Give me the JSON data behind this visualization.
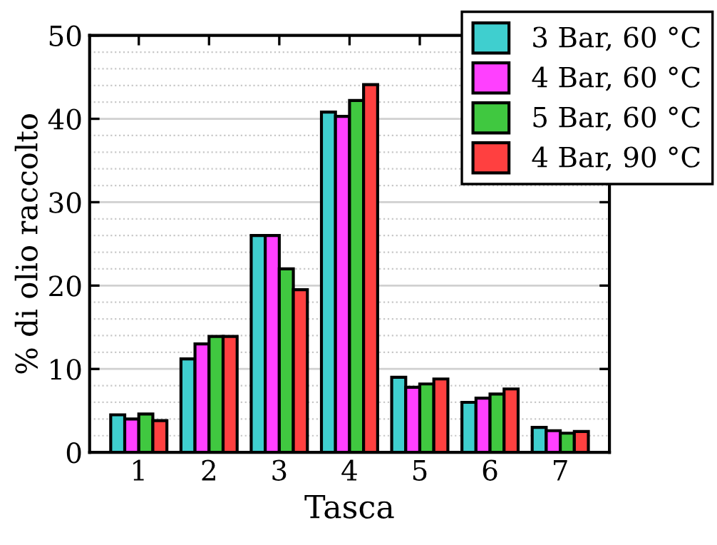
{
  "chart_data": {
    "type": "bar",
    "xlabel": "Tasca",
    "ylabel": "% di olio raccolto",
    "categories": [
      "1",
      "2",
      "3",
      "4",
      "5",
      "6",
      "7"
    ],
    "series": [
      {
        "name": "3 Bar, 60 °C",
        "color": "#3fcfcf",
        "values": [
          4.5,
          11.2,
          26.0,
          40.8,
          9.0,
          6.0,
          3.0
        ]
      },
      {
        "name": "4 Bar, 60 °C",
        "color": "#ff40ff",
        "values": [
          4.0,
          13.0,
          26.0,
          40.3,
          7.8,
          6.5,
          2.6
        ]
      },
      {
        "name": "5 Bar, 60 °C",
        "color": "#40c840",
        "values": [
          4.6,
          13.9,
          22.0,
          42.2,
          8.2,
          7.0,
          2.3
        ]
      },
      {
        "name": "4 Bar, 90 °C",
        "color": "#ff4040",
        "values": [
          3.8,
          13.9,
          19.5,
          44.1,
          8.8,
          7.6,
          2.5
        ]
      }
    ],
    "ylim": [
      0,
      50
    ],
    "yticks": [
      0,
      10,
      20,
      30,
      40,
      50
    ],
    "grid": "y",
    "legend": "top right"
  }
}
